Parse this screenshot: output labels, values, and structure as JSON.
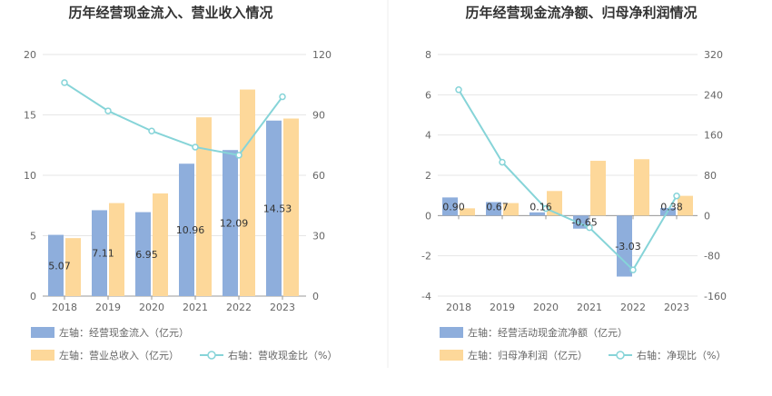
{
  "chart_data": [
    {
      "type": "bar",
      "title": "历年经营现金流入、营业收入情况",
      "categories": [
        "2018",
        "2019",
        "2020",
        "2021",
        "2022",
        "2023"
      ],
      "y_left": {
        "min": 0,
        "max": 20,
        "ticks": [
          "0",
          "5",
          "10",
          "15",
          "20"
        ]
      },
      "y_right": {
        "min": 0,
        "max": 120,
        "ticks": [
          "0",
          "30",
          "60",
          "90",
          "120"
        ]
      },
      "series": [
        {
          "name": "左轴：经营现金流入（亿元）",
          "axis": "left",
          "kind": "bar",
          "color": "#8eaedc",
          "values": [
            5.07,
            7.11,
            6.95,
            10.96,
            12.09,
            14.53
          ],
          "labels": [
            "5.07",
            "7.11",
            "6.95",
            "10.96",
            "12.09",
            "14.53"
          ]
        },
        {
          "name": "左轴：营业总收入（亿元）",
          "axis": "left",
          "kind": "bar",
          "color": "#fdd89a",
          "values": [
            4.8,
            7.7,
            8.5,
            14.8,
            17.1,
            14.7
          ]
        },
        {
          "name": "右轴：营收现金比（%）",
          "axis": "right",
          "kind": "line",
          "color": "#86d4d8",
          "values": [
            106,
            92,
            82,
            74,
            70,
            99
          ]
        }
      ]
    },
    {
      "type": "bar",
      "title": "历年经营现金流净额、归母净利润情况",
      "categories": [
        "2018",
        "2019",
        "2020",
        "2021",
        "2022",
        "2023"
      ],
      "y_left": {
        "min": -4,
        "max": 8,
        "ticks": [
          "-4",
          "-2",
          "0",
          "2",
          "4",
          "6",
          "8"
        ]
      },
      "y_right": {
        "min": -160,
        "max": 320,
        "ticks": [
          "-160",
          "-80",
          "0",
          "80",
          "160",
          "240",
          "320"
        ]
      },
      "series": [
        {
          "name": "左轴：经营活动现金流净额（亿元）",
          "axis": "left",
          "kind": "bar",
          "color": "#8eaedc",
          "values": [
            0.9,
            0.67,
            0.16,
            -0.65,
            -3.03,
            0.38
          ],
          "labels": [
            "0.90",
            "0.67",
            "0.16",
            "-0.65",
            "-3.03",
            "0.38"
          ]
        },
        {
          "name": "左轴：归母净利润（亿元）",
          "axis": "left",
          "kind": "bar",
          "color": "#fdd89a",
          "values": [
            0.36,
            0.62,
            1.22,
            2.72,
            2.8,
            0.98
          ]
        },
        {
          "name": "右轴：净现比（%）",
          "axis": "right",
          "kind": "line",
          "color": "#86d4d8",
          "values": [
            250,
            106,
            14,
            -24,
            -108,
            39
          ]
        }
      ]
    }
  ]
}
